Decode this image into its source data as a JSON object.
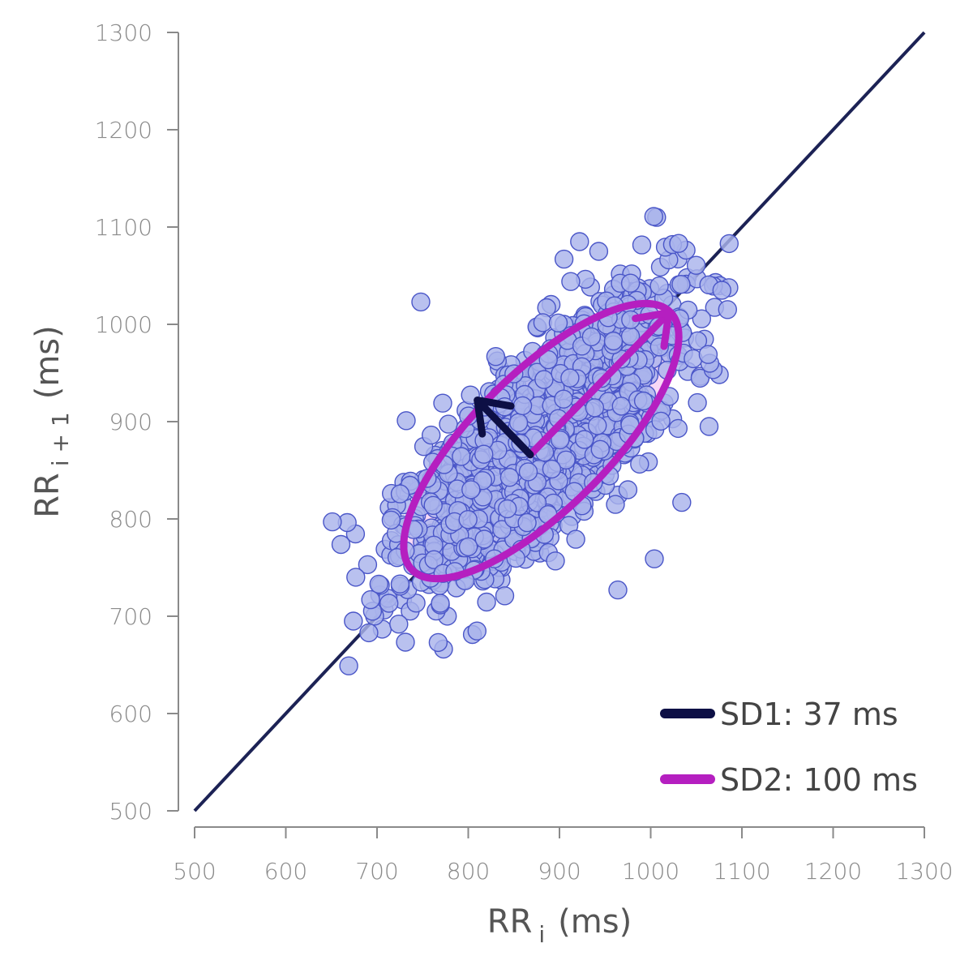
{
  "chart_data": {
    "type": "scatter",
    "xlabel": {
      "base": "RR",
      "sub": "i",
      "unit": "(ms)"
    },
    "ylabel": {
      "base": "RR",
      "sub": "i + 1",
      "unit": "(ms)"
    },
    "xlim": [
      500,
      1300
    ],
    "ylim": [
      500,
      1300
    ],
    "x_ticks": [
      "500",
      "600",
      "700",
      "800",
      "900",
      "1000",
      "1100",
      "1200",
      "1300"
    ],
    "y_ticks": [
      "500",
      "600",
      "700",
      "800",
      "900",
      "1000",
      "1100",
      "1200",
      "1300"
    ],
    "identity_line": {
      "from": [
        500,
        500
      ],
      "to": [
        1300,
        1300
      ],
      "color": "#1c2255"
    },
    "points": {
      "fill": "#a9b3ec",
      "stroke": "#4a56c8",
      "n_cluster": 1500,
      "cluster_center": [
        880,
        880
      ],
      "cluster_sd_along_identity": 100,
      "cluster_sd_across_identity": 37,
      "outliers": [
        [
          748,
          1023
        ],
        [
          651,
          797
        ],
        [
          732,
          901
        ],
        [
          840,
          721
        ],
        [
          767,
          673
        ],
        [
          964,
          727
        ],
        [
          1004,
          759
        ],
        [
          1034,
          817
        ],
        [
          1064,
          895
        ],
        [
          1086,
          1083
        ],
        [
          922,
          1085
        ],
        [
          669,
          649
        ],
        [
          674,
          695
        ],
        [
          693,
          717
        ],
        [
          772,
          919
        ],
        [
          975,
          830
        ],
        [
          943,
          1075
        ],
        [
          905,
          1067
        ],
        [
          1030,
          893
        ],
        [
          1063,
          969
        ],
        [
          1078,
          1035
        ],
        [
          691,
          683
        ],
        [
          702,
          733
        ]
      ]
    },
    "ellipse": {
      "center": [
        880,
        880
      ],
      "sd1": 37,
      "sd2": 100,
      "color": "#b51fc0"
    },
    "sd1_arrow": {
      "from": [
        868,
        866
      ],
      "to": [
        810,
        922
      ],
      "color": "#0d0f45"
    },
    "sd2_arrow": {
      "from": [
        868,
        866
      ],
      "to": [
        1020,
        1012
      ],
      "color": "#b51fc0"
    },
    "legend": [
      {
        "label": "SD1: 37 ms",
        "color": "#0d0f45"
      },
      {
        "label": "SD2: 100 ms",
        "color": "#b51fc0"
      }
    ],
    "legend_position": "bottom-right",
    "grid": false
  }
}
